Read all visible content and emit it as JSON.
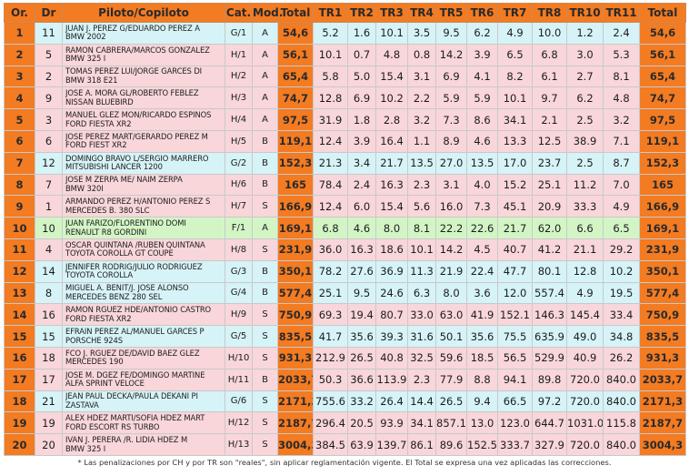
{
  "headers": [
    "Or.",
    "Dr",
    "Piloto/Copiloto",
    "Cat.",
    "Mod.",
    "Total",
    "TR1",
    "TR2",
    "TR3",
    "TR4",
    "TR5",
    "TR6",
    "TR7",
    "TR8",
    "TR10",
    "TR11",
    "Total"
  ],
  "rows": [
    {
      "or": "1",
      "dr": "11",
      "line1": "JUAN J. PÉREZ G/EDUARDO PÉREZ A",
      "line2": "BMW 2002",
      "cat": "G/1",
      "mod": "A",
      "total": "54,6",
      "tr": [
        "5.2",
        "1.6",
        "10.1",
        "3.5",
        "9.5",
        "6.2",
        "4.9",
        "10.0",
        "1.2",
        "2.4"
      ],
      "total2": "54,6",
      "color": "cyan"
    },
    {
      "or": "2",
      "dr": "5",
      "line1": "RAMÓN CABRERA/MARCOS GONZÁLEZ",
      "line2": "BMW 325 I",
      "cat": "H/1",
      "mod": "A",
      "total": "56,1",
      "tr": [
        "10.1",
        "0.7",
        "4.8",
        "0.8",
        "14.2",
        "3.9",
        "6.5",
        "6.8",
        "3.0",
        "5.3"
      ],
      "total2": "56,1",
      "color": "pink"
    },
    {
      "or": "3",
      "dr": "2",
      "line1": "TOMÁS PÉREZ LUI/JORGE GARCÉS DÍ",
      "line2": "BMW 318 E21",
      "cat": "H/2",
      "mod": "A",
      "total": "65,4",
      "tr": [
        "5.8",
        "5.0",
        "15.4",
        "3.1",
        "6.9",
        "4.1",
        "8.2",
        "6.1",
        "2.7",
        "8.1"
      ],
      "total2": "65,4",
      "color": "pink"
    },
    {
      "or": "4",
      "dr": "9",
      "line1": "JOSÉ A. MORA GL/ROBERTO FEBLEZ",
      "line2": "NISSAN BLUEBIRD",
      "cat": "H/3",
      "mod": "A",
      "total": "74,7",
      "tr": [
        "12.8",
        "6.9",
        "10.2",
        "2.2",
        "5.9",
        "5.9",
        "10.1",
        "9.7",
        "6.2",
        "4.8"
      ],
      "total2": "74,7",
      "color": "pink"
    },
    {
      "or": "5",
      "dr": "3",
      "line1": "MANUEL GLEZ MON/RICARDO ESPINOS",
      "line2": "FORD FIESTA XR2",
      "cat": "H/4",
      "mod": "A",
      "total": "97,5",
      "tr": [
        "31.9",
        "1.8",
        "2.8",
        "3.2",
        "7.3",
        "8.6",
        "34.1",
        "2.1",
        "2.5",
        "3.2"
      ],
      "total2": "97,5",
      "color": "pink"
    },
    {
      "or": "6",
      "dr": "6",
      "line1": "JOSÉ PÉREZ MART/GERARDO PÉREZ M",
      "line2": "FORD FIEST XR2",
      "cat": "H/5",
      "mod": "B",
      "total": "119,1",
      "tr": [
        "12.4",
        "3.9",
        "16.4",
        "1.1",
        "8.9",
        "4.6",
        "13.3",
        "12.5",
        "38.9",
        "7.1"
      ],
      "total2": "119,1",
      "color": "pink"
    },
    {
      "or": "7",
      "dr": "12",
      "line1": "DOMINGO BRAVO L/SERGIO MARRERO",
      "line2": "MITSUBISHI LANCER 1200",
      "cat": "G/2",
      "mod": "B",
      "total": "152,3",
      "tr": [
        "21.3",
        "3.4",
        "21.7",
        "13.5",
        "27.0",
        "13.5",
        "17.0",
        "23.7",
        "2.5",
        "8.7"
      ],
      "total2": "152,3",
      "color": "cyan"
    },
    {
      "or": "8",
      "dr": "7",
      "line1": "JOSÉ M ZERPA ME/ NAIM ZERPA",
      "line2": "BMW 320I",
      "cat": "H/6",
      "mod": "B",
      "total": "165",
      "tr": [
        "78.4",
        "2.4",
        "16.3",
        "2.3",
        "3.1",
        "4.0",
        "15.2",
        "25.1",
        "11.2",
        "7.0"
      ],
      "total2": "165",
      "color": "pink"
    },
    {
      "or": "9",
      "dr": "1",
      "line1": "ARMANDO PÉREZ H/ANTONIO PÉREZ S",
      "line2": "MERCEDES B. 380 SLC",
      "cat": "H/7",
      "mod": "S",
      "total": "166,9",
      "tr": [
        "12.4",
        "6.0",
        "15.4",
        "5.6",
        "16.0",
        "7.3",
        "45.1",
        "20.9",
        "33.3",
        "4.9"
      ],
      "total2": "166,9",
      "color": "pink"
    },
    {
      "or": "10",
      "dr": "10",
      "line1": "JUAN FARIZO/FLORENTINO DOMI",
      "line2": "RENAULT R8 GORDINI",
      "cat": "F/1",
      "mod": "A",
      "total": "169,1",
      "tr": [
        "6.8",
        "4.6",
        "8.0",
        "8.1",
        "22.2",
        "22.6",
        "21.7",
        "62.0",
        "6.6",
        "6.5"
      ],
      "total2": "169,1",
      "color": "green"
    },
    {
      "or": "11",
      "dr": "4",
      "line1": "OSCAR QUINTANA /RUBÉN QUINTANA",
      "line2": "TOYOTA COROLLA GT COUPE",
      "cat": "H/8",
      "mod": "S",
      "total": "231,9",
      "tr": [
        "36.0",
        "16.3",
        "18.6",
        "10.1",
        "14.2",
        "4.5",
        "40.7",
        "41.2",
        "21.1",
        "29.2"
      ],
      "total2": "231,9",
      "color": "pink"
    },
    {
      "or": "12",
      "dr": "14",
      "line1": "JENNIFER RODRÍG/JULIO RODRÍGUEZ",
      "line2": "TOYOTA COROLLA",
      "cat": "G/3",
      "mod": "B",
      "total": "350,1",
      "tr": [
        "78.2",
        "27.6",
        "36.9",
        "11.3",
        "21.9",
        "22.4",
        "47.7",
        "80.1",
        "12.8",
        "10.2"
      ],
      "total2": "350,1",
      "color": "cyan"
    },
    {
      "or": "13",
      "dr": "8",
      "line1": "MIGUEL A. BENIT/J. JOSÉ ALONSO",
      "line2": "MERCEDES BENZ 280 SEL",
      "cat": "G/4",
      "mod": "B",
      "total": "577,4",
      "tr": [
        "25.1",
        "9.5",
        "24.6",
        "6.3",
        "8.0",
        "3.6",
        "12.0",
        "557.4",
        "4.9",
        "19.5"
      ],
      "total2": "577,4",
      "color": "cyan"
    },
    {
      "or": "14",
      "dr": "16",
      "line1": "RAMÓN RGUEZ HDE/ANTONIO CASTRO",
      "line2": "FORD FIESTA XR2",
      "cat": "H/9",
      "mod": "S",
      "total": "750,9",
      "tr": [
        "69.3",
        "19.4",
        "80.7",
        "33.0",
        "63.0",
        "41.9",
        "152.1",
        "146.3",
        "145.4",
        "33.4"
      ],
      "total2": "750,9",
      "color": "pink"
    },
    {
      "or": "15",
      "dr": "15",
      "line1": "ÉFRAIN PÉREZ ÁL/MANUEL GARCÉS P",
      "line2": "PORSCHE 924S",
      "cat": "G/5",
      "mod": "S",
      "total": "835,5",
      "tr": [
        "41.7",
        "35.6",
        "39.3",
        "31.6",
        "50.1",
        "35.6",
        "75.5",
        "635.9",
        "49.0",
        "34.8"
      ],
      "total2": "835,5",
      "color": "cyan"
    },
    {
      "or": "16",
      "dr": "18",
      "line1": "FCO J. RGUEZ DE/DAVID BAEZ GLEZ",
      "line2": "MERCEDES 190",
      "cat": "H/10",
      "mod": "S",
      "total": "931,3",
      "tr": [
        "212.9",
        "26.5",
        "40.8",
        "32.5",
        "59.6",
        "18.5",
        "56.5",
        "529.9",
        "40.9",
        "26.2"
      ],
      "total2": "931,3",
      "color": "pink"
    },
    {
      "or": "17",
      "dr": "17",
      "line1": "JOSÉ M. DGEZ FE/DOMINGO MARTÍNE",
      "line2": "ALFA SPRINT VELOCE",
      "cat": "H/11",
      "mod": "B",
      "total": "2033,7",
      "tr": [
        "50.3",
        "36.6",
        "113.9",
        "2.3",
        "77.9",
        "8.8",
        "94.1",
        "89.8",
        "720.0",
        "840.0"
      ],
      "total2": "2033,7",
      "color": "pink"
    },
    {
      "or": "18",
      "dr": "21",
      "line1": "JEAN PAUL DECKA/PAULA DEKANI PI",
      "line2": "ZASTAVA",
      "cat": "G/6",
      "mod": "S",
      "total": "2171,3",
      "tr": [
        "755.6",
        "33.2",
        "26.4",
        "14.4",
        "26.5",
        "9.4",
        "66.5",
        "97.2",
        "720.0",
        "840.0"
      ],
      "total2": "2171,3",
      "color": "cyan"
    },
    {
      "or": "19",
      "dr": "19",
      "line1": "ALEX HDEZ MARTÍ/SOFIA HDEZ MART",
      "line2": "FORD ESCORT RS TURBO",
      "cat": "H/12",
      "mod": "S",
      "total": "2187,7",
      "tr": [
        "296.4",
        "20.5",
        "93.9",
        "34.1",
        "857.1",
        "13.0",
        "123.0",
        "644.7",
        "1031.0",
        "115.8"
      ],
      "total2": "2187,7",
      "color": "pink"
    },
    {
      "or": "20",
      "dr": "20",
      "line1": "IVAN J. PERERA /R. LIDIA HDEZ M",
      "line2": "BMW 325 I",
      "cat": "H/13",
      "mod": "S",
      "total": "3004,3",
      "tr": [
        "384.5",
        "63.9",
        "139.7",
        "86.1",
        "89.6",
        "152.5",
        "333.7",
        "327.9",
        "720.0",
        "840.0"
      ],
      "total2": "3004,3",
      "color": "pink"
    }
  ],
  "footnote": "* Las penalizaciones por CH y por TR son \"reales\", sin aplicar reglamentación vigente. El Total se expresa una vez aplicadas las correcciones."
}
